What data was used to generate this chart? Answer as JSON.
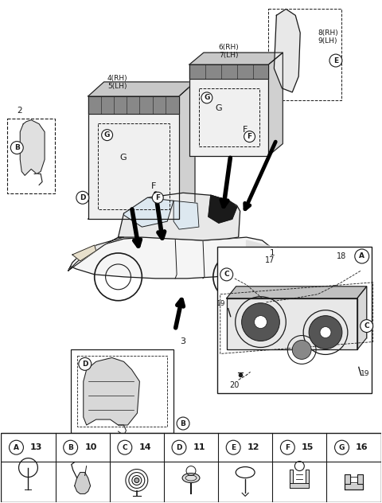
{
  "bg_color": "#ffffff",
  "line_color": "#1a1a1a",
  "fig_width": 4.8,
  "fig_height": 6.32,
  "dpi": 100,
  "legend_items": [
    {
      "label": "A",
      "num": "13"
    },
    {
      "label": "B",
      "num": "10"
    },
    {
      "label": "C",
      "num": "14"
    },
    {
      "label": "D",
      "num": "11"
    },
    {
      "label": "E",
      "num": "12"
    },
    {
      "label": "F",
      "num": "15"
    },
    {
      "label": "G",
      "num": "16"
    }
  ]
}
